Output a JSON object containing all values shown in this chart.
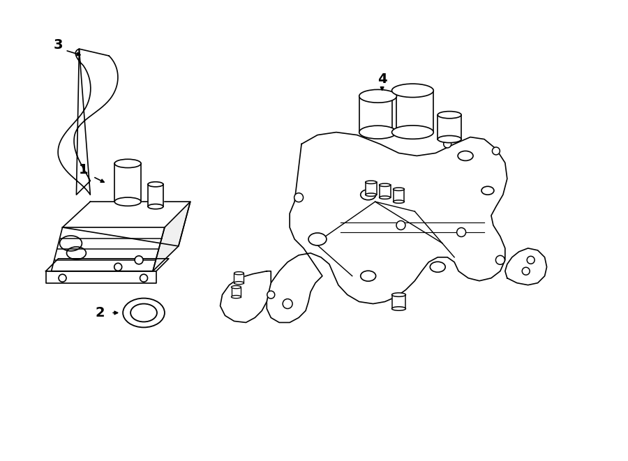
{
  "background_color": "#ffffff",
  "line_color": "#000000",
  "line_width": 1.2,
  "fig_width": 9.0,
  "fig_height": 6.61,
  "dpi": 100
}
